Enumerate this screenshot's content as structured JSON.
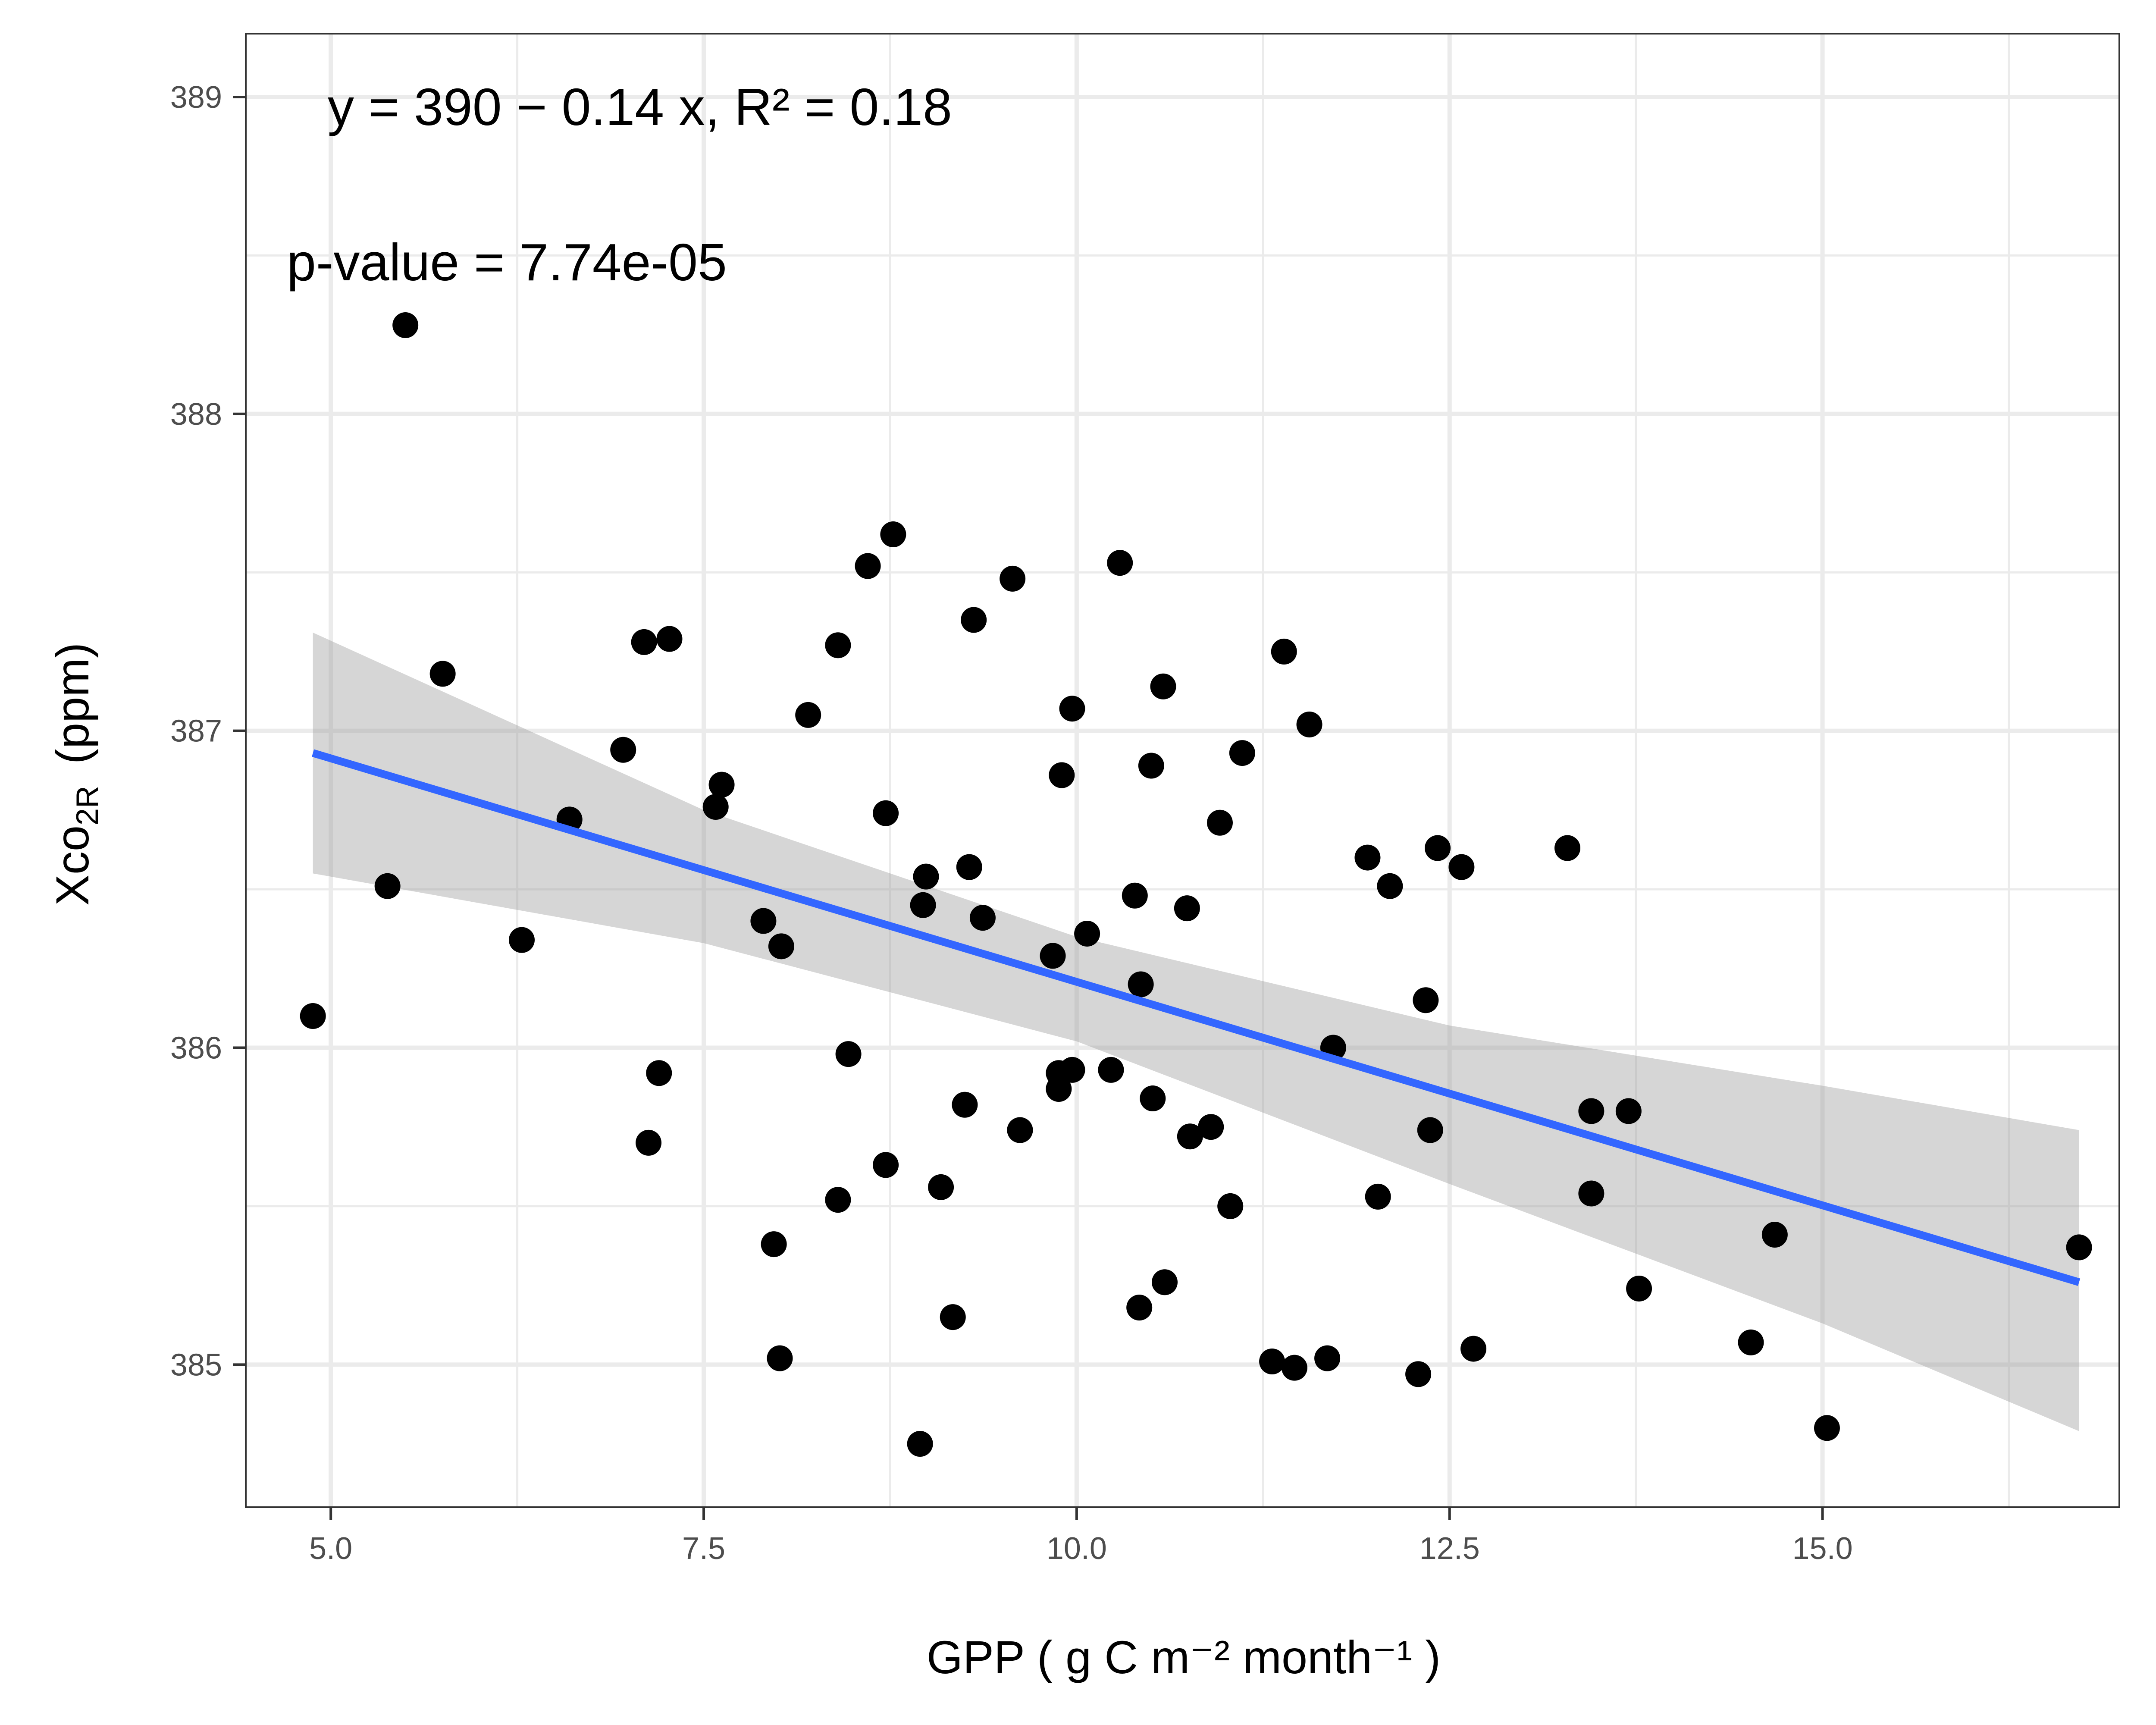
{
  "chart_data": {
    "type": "scatter",
    "xlabel": "GPP ( g C m⁻² month⁻¹ )",
    "ylabel_main": "Xco",
    "ylabel_sub": "2R",
    "ylabel_unit": "(ppm)",
    "xlim": [
      4.43,
      16.99
    ],
    "ylim": [
      384.55,
      389.2
    ],
    "x_ticks": [
      5.0,
      7.5,
      10.0,
      12.5,
      15.0
    ],
    "x_tick_labels": [
      "5.0",
      "7.5",
      "10.0",
      "12.5",
      "15.0"
    ],
    "y_ticks": [
      385,
      386,
      387,
      388,
      389
    ],
    "y_tick_labels": [
      "385",
      "386",
      "387",
      "388",
      "389"
    ],
    "grid": true,
    "equation_text": "y = 390 − 0.14 x,  R² = 0.18",
    "pvalue_text": "p-value = 7.74e-05",
    "colors": {
      "points": "#000000",
      "fit_line": "#3366FF",
      "confidence_band": "#999999",
      "grid": "#ebebeb",
      "panel_border": "#333333"
    },
    "fit_line": {
      "x": [
        4.88,
        16.72
      ],
      "y": [
        386.93,
        385.26
      ]
    },
    "confidence_band": {
      "x": [
        4.88,
        7.5,
        10.0,
        12.5,
        15.0,
        16.72
      ],
      "upper": [
        387.31,
        386.75,
        386.35,
        386.07,
        385.88,
        385.74
      ],
      "lower": [
        386.55,
        386.33,
        386.02,
        385.57,
        385.13,
        384.79
      ]
    },
    "points": [
      [
        5.5,
        388.28
      ],
      [
        4.88,
        386.1
      ],
      [
        5.38,
        386.51
      ],
      [
        5.75,
        387.18
      ],
      [
        6.28,
        386.34
      ],
      [
        6.6,
        386.72
      ],
      [
        6.96,
        386.94
      ],
      [
        7.1,
        387.28
      ],
      [
        7.27,
        387.29
      ],
      [
        7.2,
        385.92
      ],
      [
        7.13,
        385.7
      ],
      [
        7.58,
        386.76
      ],
      [
        7.62,
        386.83
      ],
      [
        7.9,
        386.4
      ],
      [
        8.02,
        386.32
      ],
      [
        7.97,
        385.38
      ],
      [
        8.01,
        385.02
      ],
      [
        8.2,
        387.05
      ],
      [
        8.4,
        387.27
      ],
      [
        8.47,
        385.98
      ],
      [
        8.4,
        385.52
      ],
      [
        8.6,
        387.52
      ],
      [
        8.77,
        387.62
      ],
      [
        8.72,
        386.74
      ],
      [
        8.72,
        385.63
      ],
      [
        8.97,
        386.45
      ],
      [
        8.99,
        386.54
      ],
      [
        8.95,
        384.75
      ],
      [
        9.09,
        385.56
      ],
      [
        9.17,
        385.15
      ],
      [
        9.28,
        386.57
      ],
      [
        9.31,
        387.35
      ],
      [
        9.37,
        386.41
      ],
      [
        9.25,
        385.82
      ],
      [
        9.57,
        387.48
      ],
      [
        9.62,
        385.74
      ],
      [
        9.84,
        386.29
      ],
      [
        9.9,
        386.86
      ],
      [
        9.88,
        385.92
      ],
      [
        9.88,
        385.87
      ],
      [
        9.97,
        387.07
      ],
      [
        9.97,
        385.93
      ],
      [
        10.07,
        386.36
      ],
      [
        10.23,
        385.93
      ],
      [
        10.29,
        387.53
      ],
      [
        10.39,
        386.48
      ],
      [
        10.43,
        386.2
      ],
      [
        10.42,
        385.18
      ],
      [
        10.5,
        386.89
      ],
      [
        10.51,
        385.84
      ],
      [
        10.58,
        387.14
      ],
      [
        10.59,
        385.26
      ],
      [
        10.74,
        386.44
      ],
      [
        10.76,
        385.72
      ],
      [
        10.9,
        385.75
      ],
      [
        10.96,
        386.71
      ],
      [
        11.03,
        385.5
      ],
      [
        11.11,
        386.93
      ],
      [
        11.31,
        385.01
      ],
      [
        11.39,
        387.25
      ],
      [
        11.46,
        384.99
      ],
      [
        11.56,
        387.02
      ],
      [
        11.68,
        385.02
      ],
      [
        11.72,
        386.0
      ],
      [
        11.95,
        386.6
      ],
      [
        12.02,
        385.53
      ],
      [
        12.1,
        386.51
      ],
      [
        12.29,
        384.97
      ],
      [
        12.34,
        386.15
      ],
      [
        12.37,
        385.74
      ],
      [
        12.42,
        386.63
      ],
      [
        12.58,
        386.57
      ],
      [
        12.66,
        385.05
      ],
      [
        13.29,
        386.63
      ],
      [
        13.45,
        385.8
      ],
      [
        13.45,
        385.54
      ],
      [
        13.7,
        385.8
      ],
      [
        13.77,
        385.24
      ],
      [
        14.52,
        385.07
      ],
      [
        14.68,
        385.41
      ],
      [
        15.03,
        384.8
      ],
      [
        16.72,
        385.37
      ]
    ]
  }
}
